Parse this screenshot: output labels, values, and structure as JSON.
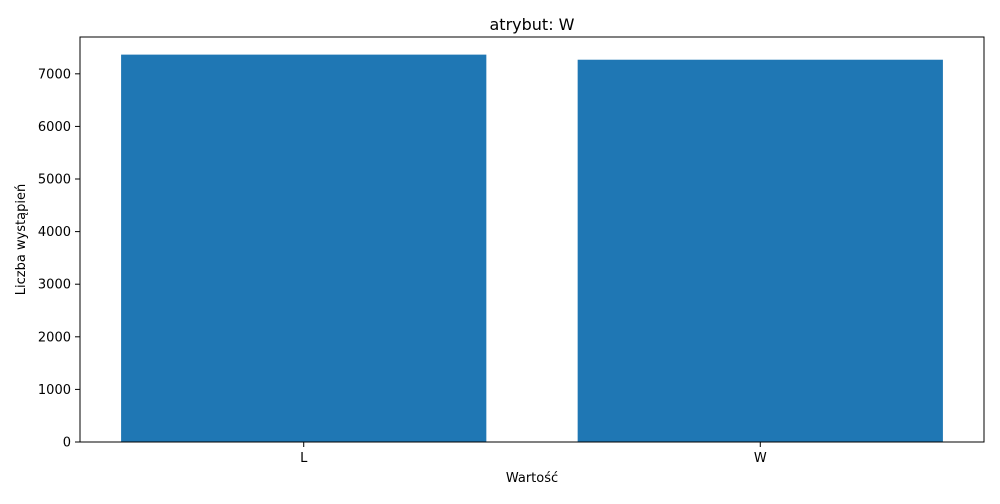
{
  "chart_data": {
    "type": "bar",
    "title": "atrybut: W",
    "xlabel": "Wartość",
    "ylabel": "Liczba wystąpień",
    "categories": [
      "L",
      "W"
    ],
    "values": [
      7365,
      7268
    ],
    "ylim": [
      0,
      7700
    ],
    "yticks": [
      0,
      1000,
      2000,
      3000,
      4000,
      5000,
      6000,
      7000
    ],
    "grid": false,
    "legend": "none",
    "bar_color": "#1f77b4"
  }
}
